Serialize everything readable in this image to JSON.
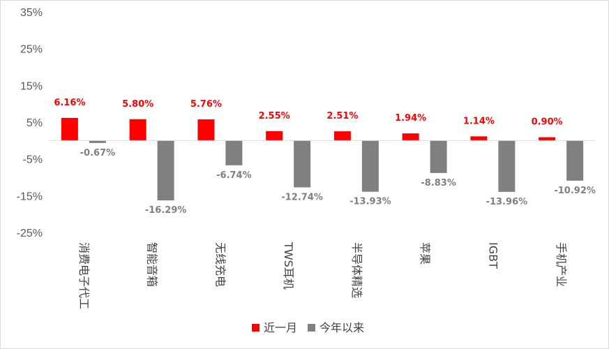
{
  "chart_data": {
    "type": "bar",
    "categories": [
      "消费电子代工",
      "智能音箱",
      "无线充电",
      "TWS耳机",
      "半导体精选",
      "苹果",
      "IGBT",
      "手机产业"
    ],
    "series": [
      {
        "name": "近一月",
        "values": [
          6.16,
          5.8,
          5.76,
          2.55,
          2.51,
          1.94,
          1.14,
          0.9
        ],
        "labels": [
          "6.16%",
          "5.80%",
          "5.76%",
          "2.55%",
          "2.51%",
          "1.94%",
          "1.14%",
          "0.90%"
        ],
        "color": "#ff0000"
      },
      {
        "name": "今年以来",
        "values": [
          -0.67,
          -16.29,
          -6.74,
          -12.74,
          -13.93,
          -8.83,
          -13.96,
          -10.92
        ],
        "labels": [
          "-0.67%",
          "-16.29%",
          "-6.74%",
          "-12.74%",
          "-13.93%",
          "-8.83%",
          "-13.96%",
          "-10.92%"
        ],
        "color": "#808080"
      }
    ],
    "ylim": [
      -25,
      35
    ],
    "yticks": [
      35,
      25,
      15,
      5,
      -5,
      -15,
      -25
    ],
    "ytick_labels": [
      "35%",
      "25%",
      "15%",
      "5%",
      "-5%",
      "-15%",
      "-25%"
    ],
    "grid": false,
    "legend_position": "bottom-center"
  }
}
